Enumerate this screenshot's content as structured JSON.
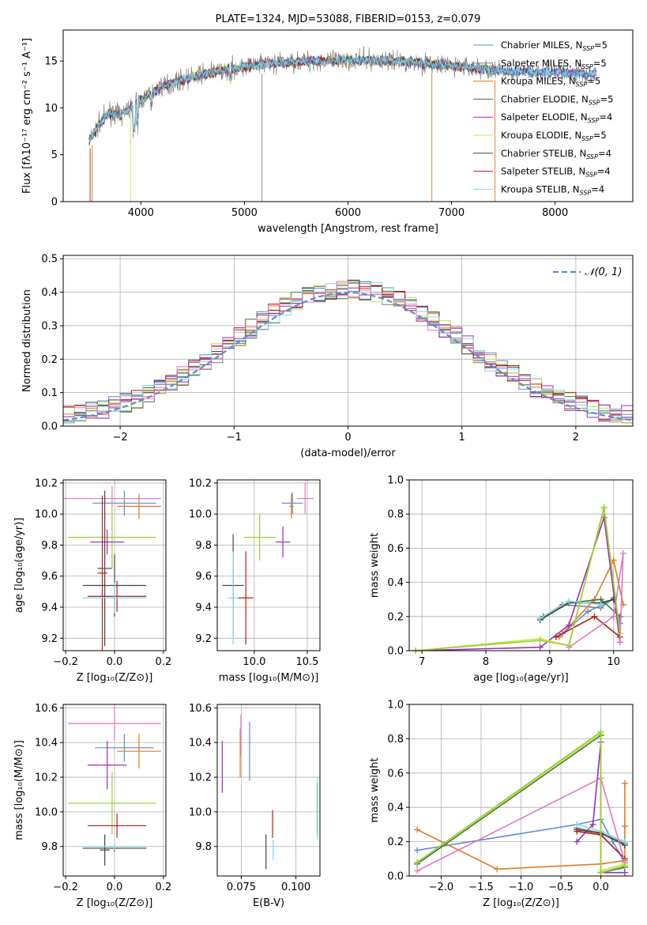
{
  "colors": {
    "Chabrier MILES": "#5b8bd6",
    "Salpeter MILES": "#7f7f7f",
    "Kroupa MILES": "#e07b20",
    "Chabrier ELODIE": "#3d7a3d",
    "Salpeter ELODIE": "#9a2fb0",
    "Kroupa ELODIE": "#c8e34a",
    "Chabrier STELIB": "#444444",
    "Salpeter STELIB": "#b81b1b",
    "Kroupa STELIB": "#7fd8e8",
    "pink": "#e377c2",
    "lime": "#9acd32",
    "normal": "#5b8bd6"
  },
  "chart_data": [
    {
      "id": "spectrum",
      "type": "line",
      "title": "PLATE=1324, MJD=53088, FIBERID=0153, z=0.079",
      "xlabel": "wavelength [Angstrom, rest frame]",
      "ylabel": "Flux [fλ10⁻¹⁷ erg cm⁻² s⁻¹ A⁻¹]",
      "xlim": [
        3250,
        8750
      ],
      "ylim": [
        0,
        18.3
      ],
      "xticks": [
        4000,
        5000,
        6000,
        7000,
        8000
      ],
      "yticks": [
        0,
        5,
        10,
        15
      ],
      "legend_position": "upper right",
      "legend": [
        {
          "name": "Chabrier MILES, N",
          "sub": "SSP",
          "suffix": "=5"
        },
        {
          "name": "Salpeter MILES, N",
          "sub": "SSP",
          "suffix": "=5"
        },
        {
          "name": "Kroupa MILES, N",
          "sub": "SSP",
          "suffix": "=5"
        },
        {
          "name": "Chabrier ELODIE, N",
          "sub": "SSP",
          "suffix": "=5"
        },
        {
          "name": "Salpeter ELODIE, N",
          "sub": "SSP",
          "suffix": "=4"
        },
        {
          "name": "Kroupa ELODIE, N",
          "sub": "SSP",
          "suffix": "=5"
        },
        {
          "name": "Chabrier STELIB, N",
          "sub": "SSP",
          "suffix": "=4"
        },
        {
          "name": "Salpeter STELIB, N",
          "sub": "SSP",
          "suffix": "=4"
        },
        {
          "name": "Kroupa STELIB, N",
          "sub": "SSP",
          "suffix": "=4"
        }
      ],
      "continuum": [
        [
          3500,
          6.5
        ],
        [
          3600,
          8.3
        ],
        [
          3700,
          9.5
        ],
        [
          3800,
          9.2
        ],
        [
          3900,
          10.0
        ],
        [
          4000,
          10.8
        ],
        [
          4200,
          12.3
        ],
        [
          4400,
          13.0
        ],
        [
          4600,
          13.6
        ],
        [
          4800,
          14.0
        ],
        [
          5000,
          14.4
        ],
        [
          5200,
          14.7
        ],
        [
          5400,
          14.8
        ],
        [
          5600,
          15.0
        ],
        [
          5800,
          15.0
        ],
        [
          6000,
          15.1
        ],
        [
          6200,
          15.1
        ],
        [
          6400,
          15.0
        ],
        [
          6600,
          14.9
        ],
        [
          6800,
          14.7
        ],
        [
          7000,
          14.5
        ],
        [
          7200,
          14.3
        ],
        [
          7400,
          14.0
        ],
        [
          7600,
          13.9
        ],
        [
          7800,
          13.8
        ],
        [
          8000,
          13.8
        ],
        [
          8200,
          13.7
        ],
        [
          8400,
          13.6
        ]
      ]
    },
    {
      "id": "residuals",
      "type": "step",
      "xlabel": "(data-model)/error",
      "ylabel": "Normed distribution",
      "xlim": [
        -2.5,
        2.5
      ],
      "ylim": [
        0,
        0.51
      ],
      "xticks": [
        -2,
        -1,
        0,
        1,
        2
      ],
      "yticks": [
        0.0,
        0.1,
        0.2,
        0.3,
        0.4,
        0.5
      ],
      "normal_curve_label": "𝒩(0, 1)",
      "bins": {
        "start": -2.5,
        "width": 0.1
      }
    },
    {
      "id": "age-vs-Z",
      "type": "errorbar",
      "xlabel": "Z [log₁₀(Z/Z⊙)]",
      "ylabel": "age  [log₁₀(age/yr)]",
      "xlim": [
        -0.21,
        0.21
      ],
      "ylim": [
        9.12,
        10.22
      ],
      "xticks": [
        -0.2,
        0.0,
        0.2
      ],
      "yticks": [
        9.2,
        9.4,
        9.6,
        9.8,
        10.0,
        10.2
      ],
      "points": [
        {
          "series": "Chabrier MILES",
          "x": 0.04,
          "xerr": 0.13,
          "y": 10.07,
          "yerr": 0.08
        },
        {
          "series": "Kroupa MILES",
          "x": 0.1,
          "xerr": 0.09,
          "y": 10.05,
          "yerr": 0.08
        },
        {
          "series": "pink",
          "x": -0.01,
          "xerr": 0.2,
          "y": 10.1,
          "yerr": 0.08
        },
        {
          "series": "lime",
          "x": -0.01,
          "xerr": 0.18,
          "y": 9.85,
          "yerr": 0.2
        },
        {
          "series": "Salpeter ELODIE",
          "x": -0.03,
          "xerr": 0.07,
          "y": 9.82,
          "yerr": 0.08
        },
        {
          "series": "Chabrier STELIB",
          "x": -0.04,
          "xerr": 0.03,
          "y": 9.65,
          "yerr": 0.5
        },
        {
          "series": "Salpeter STELIB",
          "x": -0.05,
          "xerr": 0.02,
          "y": 9.62,
          "yerr": 0.5
        },
        {
          "series": "Chabrier STELIB",
          "x": 0.0,
          "xerr": 0.13,
          "y": 9.54,
          "yerr": 0.2
        },
        {
          "series": "Salpeter STELIB",
          "x": 0.01,
          "xerr": 0.12,
          "y": 9.47,
          "yerr": 0.1
        },
        {
          "series": "Kroupa STELIB",
          "x": 0.0,
          "xerr": 0.13,
          "y": 9.46,
          "yerr": 0.1
        }
      ]
    },
    {
      "id": "age-vs-mass",
      "type": "errorbar",
      "xlabel": "mass [log₁₀(M/M⊙)]",
      "ylabel": "",
      "xlim": [
        9.65,
        10.62
      ],
      "ylim": [
        9.12,
        10.22
      ],
      "xticks": [
        10.0,
        10.5
      ],
      "yticks": [
        9.2,
        9.4,
        9.6,
        9.8,
        10.0,
        10.2
      ],
      "points": [
        {
          "series": "pink",
          "x": 10.48,
          "xerr": 0.08,
          "y": 10.1,
          "yerr": 0.1
        },
        {
          "series": "Chabrier MILES",
          "x": 10.36,
          "xerr": 0.1,
          "y": 10.07,
          "yerr": 0.07
        },
        {
          "series": "Kroupa MILES",
          "x": 10.35,
          "xerr": 0.02,
          "y": 10.05,
          "yerr": 0.08
        },
        {
          "series": "lime",
          "x": 10.05,
          "xerr": 0.15,
          "y": 9.85,
          "yerr": 0.15
        },
        {
          "series": "Salpeter ELODIE",
          "x": 10.27,
          "xerr": 0.07,
          "y": 9.82,
          "yerr": 0.1
        },
        {
          "series": "Chabrier STELIB",
          "x": 9.8,
          "xerr": 0.1,
          "y": 9.54,
          "yerr": 0.33
        },
        {
          "series": "Salpeter STELIB",
          "x": 9.92,
          "xerr": 0.07,
          "y": 9.46,
          "yerr": 0.3
        },
        {
          "series": "Kroupa STELIB",
          "x": 9.8,
          "xerr": 0.05,
          "y": 9.46,
          "yerr": 0.3
        }
      ]
    },
    {
      "id": "weight-vs-age",
      "type": "line",
      "xlabel": "age  [log₁₀(age/yr)]",
      "ylabel": "mass weight",
      "xlim": [
        6.8,
        10.3
      ],
      "ylim": [
        0,
        1.0
      ],
      "xticks": [
        7,
        8,
        9,
        10
      ],
      "yticks": [
        0.0,
        0.2,
        0.4,
        0.6,
        0.8,
        1.0
      ],
      "series": [
        {
          "name": "Chabrier MILES",
          "x": [
            9.2,
            9.6,
            10.0,
            10.1
          ],
          "y": [
            0.1,
            0.23,
            0.3,
            0.16
          ]
        },
        {
          "name": "Salpeter MILES",
          "x": [
            8.85,
            9.2,
            9.8,
            10.0
          ],
          "y": [
            0.19,
            0.27,
            0.25,
            0.31
          ]
        },
        {
          "name": "Kroupa MILES",
          "x": [
            9.15,
            9.7,
            10.0,
            10.15
          ],
          "y": [
            0.08,
            0.3,
            0.53,
            0.27
          ]
        },
        {
          "name": "Chabrier ELODIE",
          "x": [
            8.9,
            9.3,
            9.8,
            10.1
          ],
          "y": [
            0.2,
            0.28,
            0.3,
            0.2
          ]
        },
        {
          "name": "Salpeter ELODIE",
          "x": [
            6.9,
            8.85,
            9.3,
            9.85,
            10.1
          ],
          "y": [
            0.0,
            0.02,
            0.15,
            0.78,
            0.05
          ]
        },
        {
          "name": "Kroupa ELODIE",
          "x": [
            6.9,
            8.85,
            9.3,
            9.85,
            10.1
          ],
          "y": [
            0.0,
            0.07,
            0.03,
            0.83,
            0.1
          ]
        },
        {
          "name": "Chabrier STELIB",
          "x": [
            8.85,
            9.3,
            9.8,
            10.0
          ],
          "y": [
            0.18,
            0.28,
            0.28,
            0.3
          ]
        },
        {
          "name": "Salpeter STELIB",
          "x": [
            9.1,
            9.7,
            10.1
          ],
          "y": [
            0.08,
            0.2,
            0.08
          ]
        },
        {
          "name": "Kroupa STELIB",
          "x": [
            8.85,
            9.3,
            9.8
          ],
          "y": [
            0.19,
            0.29,
            0.27
          ]
        },
        {
          "name": "pink",
          "x": [
            9.3,
            10.0,
            10.15,
            10.1
          ],
          "y": [
            0.02,
            0.2,
            0.57,
            0.05
          ]
        },
        {
          "name": "lime",
          "x": [
            6.9,
            8.85,
            9.3,
            9.85,
            10.1
          ],
          "y": [
            0.0,
            0.06,
            0.03,
            0.84,
            0.1
          ]
        }
      ]
    },
    {
      "id": "mass-vs-Z",
      "type": "errorbar",
      "xlabel": "Z [log₁₀(Z/Z⊙)]",
      "ylabel": "mass [log₁₀(M/M⊙)]",
      "xlim": [
        -0.21,
        0.21
      ],
      "ylim": [
        9.63,
        10.62
      ],
      "xticks": [
        -0.2,
        0.0,
        0.2
      ],
      "yticks": [
        9.8,
        10.0,
        10.2,
        10.4,
        10.6
      ],
      "points": [
        {
          "series": "pink",
          "x": 0.0,
          "xerr": 0.19,
          "y": 10.51,
          "yerr": 0.1
        },
        {
          "series": "Chabrier MILES",
          "x": 0.04,
          "xerr": 0.12,
          "y": 10.37,
          "yerr": 0.08
        },
        {
          "series": "Kroupa MILES",
          "x": 0.1,
          "xerr": 0.09,
          "y": 10.35,
          "yerr": 0.1
        },
        {
          "series": "Salpeter ELODIE",
          "x": -0.03,
          "xerr": 0.08,
          "y": 10.27,
          "yerr": 0.14
        },
        {
          "series": "lime",
          "x": -0.01,
          "xerr": 0.18,
          "y": 10.05,
          "yerr": 0.18
        },
        {
          "series": "Salpeter STELIB",
          "x": 0.01,
          "xerr": 0.12,
          "y": 9.92,
          "yerr": 0.07
        },
        {
          "series": "Chabrier STELIB",
          "x": -0.04,
          "xerr": 0.02,
          "y": 9.78,
          "yerr": 0.09
        },
        {
          "series": "Chabrier STELIB",
          "x": 0.0,
          "xerr": 0.13,
          "y": 9.79,
          "yerr": 0.02
        },
        {
          "series": "Kroupa STELIB",
          "x": 0.0,
          "xerr": 0.13,
          "y": 9.8,
          "yerr": 0.02
        }
      ]
    },
    {
      "id": "mass-vs-EBV",
      "type": "errorbar",
      "xlabel": "E(B-V)",
      "ylabel": "",
      "xlim": [
        0.064,
        0.111
      ],
      "ylim": [
        9.63,
        10.62
      ],
      "xticks": [
        0.075,
        0.1
      ],
      "yticks": [
        9.8,
        10.0,
        10.2,
        10.4,
        10.6
      ],
      "points": [
        {
          "series": "Salpeter ELODIE",
          "x": 0.0663,
          "yerr": 0.15,
          "y": 10.26
        },
        {
          "series": "Kroupa MILES",
          "x": 0.0745,
          "yerr": 0.14,
          "y": 10.34
        },
        {
          "series": "pink",
          "x": 0.0748,
          "yerr": 0.12,
          "y": 10.44
        },
        {
          "series": "Chabrier MILES",
          "x": 0.0788,
          "yerr": 0.17,
          "y": 10.35
        },
        {
          "series": "Chabrier STELIB",
          "x": 0.0863,
          "yerr": 0.1,
          "y": 9.77
        },
        {
          "series": "Salpeter STELIB",
          "x": 0.0893,
          "yerr": 0.08,
          "y": 9.93
        },
        {
          "series": "Kroupa STELIB",
          "x": 0.0896,
          "yerr": 0.06,
          "y": 9.78
        },
        {
          "series": "lime",
          "x": 0.1097,
          "yerr": 0.15,
          "y": 10.02
        },
        {
          "series": "Kroupa STELIB",
          "x": 0.1099,
          "yerr": 0.18,
          "y": 10.02
        }
      ]
    },
    {
      "id": "weight-vs-Z",
      "type": "line",
      "xlabel": "Z [log₁₀(Z/Z⊙)]",
      "ylabel": "mass weight",
      "xlim": [
        -2.4,
        0.4
      ],
      "ylim": [
        0,
        1.0
      ],
      "xticks": [
        -2.0,
        -1.5,
        -1.0,
        -0.5,
        0.0
      ],
      "yticks": [
        0.0,
        0.2,
        0.4,
        0.6,
        0.8,
        1.0
      ],
      "series": [
        {
          "name": "Chabrier MILES",
          "x": [
            -2.3,
            -0.3,
            0.0,
            0.15,
            0.3
          ],
          "y": [
            0.15,
            0.3,
            0.33,
            0.2,
            0.08
          ]
        },
        {
          "name": "Kroupa MILES",
          "x": [
            -2.3,
            -1.3,
            0.0,
            0.3,
            0.3,
            0.3
          ],
          "y": [
            0.27,
            0.04,
            0.07,
            0.09,
            0.54,
            0.29
          ]
        },
        {
          "name": "Chabrier ELODIE",
          "x": [
            -2.3,
            0.0,
            0.0,
            0.3
          ],
          "y": [
            0.07,
            0.82,
            0.02,
            0.05
          ]
        },
        {
          "name": "Salpeter ELODIE",
          "x": [
            -0.3,
            -0.1,
            0.0,
            0.0,
            0.3
          ],
          "y": [
            0.2,
            0.3,
            0.78,
            0.02,
            0.02
          ]
        },
        {
          "name": "Kroupa ELODIE",
          "x": [
            -2.3,
            0.0,
            0.0,
            0.3
          ],
          "y": [
            0.08,
            0.83,
            0.03,
            0.07
          ]
        },
        {
          "name": "Salpeter MILES",
          "x": [
            -0.3,
            0.0,
            0.3
          ],
          "y": [
            0.28,
            0.25,
            0.19
          ]
        },
        {
          "name": "Chabrier STELIB",
          "x": [
            -0.3,
            0.0,
            0.3
          ],
          "y": [
            0.27,
            0.25,
            0.18
          ]
        },
        {
          "name": "Salpeter STELIB",
          "x": [
            -0.3,
            0.0,
            0.3
          ],
          "y": [
            0.26,
            0.24,
            0.1
          ]
        },
        {
          "name": "Kroupa STELIB",
          "x": [
            -0.3,
            0.0,
            0.3
          ],
          "y": [
            0.3,
            0.26,
            0.2
          ]
        },
        {
          "name": "pink",
          "x": [
            -2.3,
            0.0,
            0.3
          ],
          "y": [
            0.03,
            0.57,
            0.08
          ]
        },
        {
          "name": "lime",
          "x": [
            -2.3,
            0.0,
            0.0,
            0.3
          ],
          "y": [
            0.08,
            0.84,
            0.02,
            0.06
          ]
        }
      ]
    }
  ]
}
